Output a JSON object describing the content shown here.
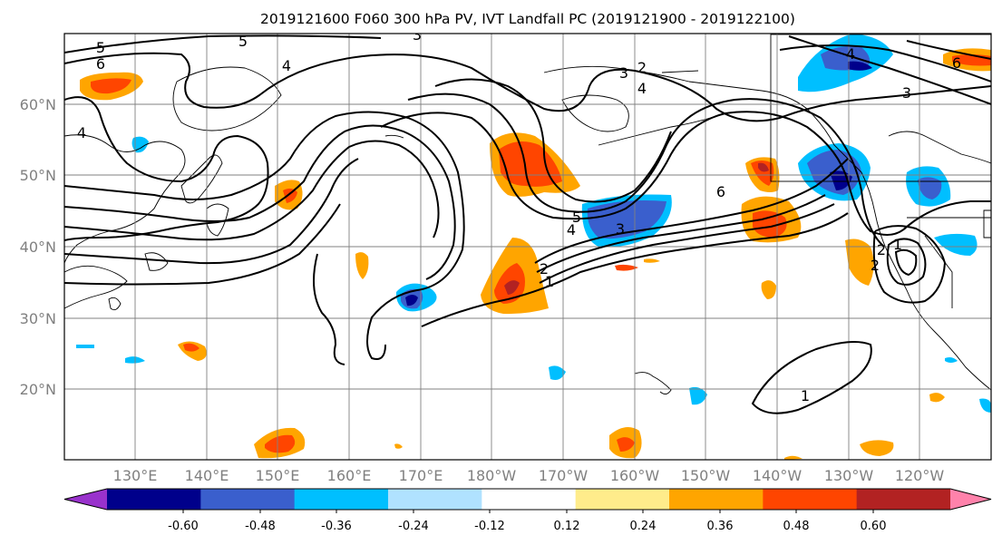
{
  "title": "2019121600 F060 300 hPa PV, IVT Landfall PC (2019121900 - 2019122100)",
  "lat_labels": [
    "60°N",
    "50°N",
    "40°N",
    "30°N",
    "20°N"
  ],
  "lon_labels": [
    "130°E",
    "140°E",
    "150°E",
    "160°E",
    "170°E",
    "180°W",
    "170°W",
    "160°W",
    "150°W",
    "140°W",
    "130°W",
    "120°W"
  ],
  "colorbar": {
    "colors": [
      "#9932cc",
      "#00008b",
      "#3a5fcd",
      "#00bfff",
      "#b0e2ff",
      "#ffffff",
      "#ffec8b",
      "#ffa500",
      "#ff4500",
      "#b22222",
      "#ff82ab"
    ],
    "tick_labels": [
      "-0.60",
      "-0.48",
      "-0.36",
      "-0.24",
      "-0.12",
      "0.12",
      "0.24",
      "0.36",
      "0.48",
      "0.60"
    ]
  },
  "contour_labels": [
    "5",
    "6",
    "5",
    "4",
    "3",
    "2",
    "4",
    "4",
    "6",
    "3",
    "2",
    "1",
    "5",
    "4",
    "3",
    "6",
    "2",
    "1",
    "4",
    "3",
    "6",
    "2",
    "1"
  ]
}
